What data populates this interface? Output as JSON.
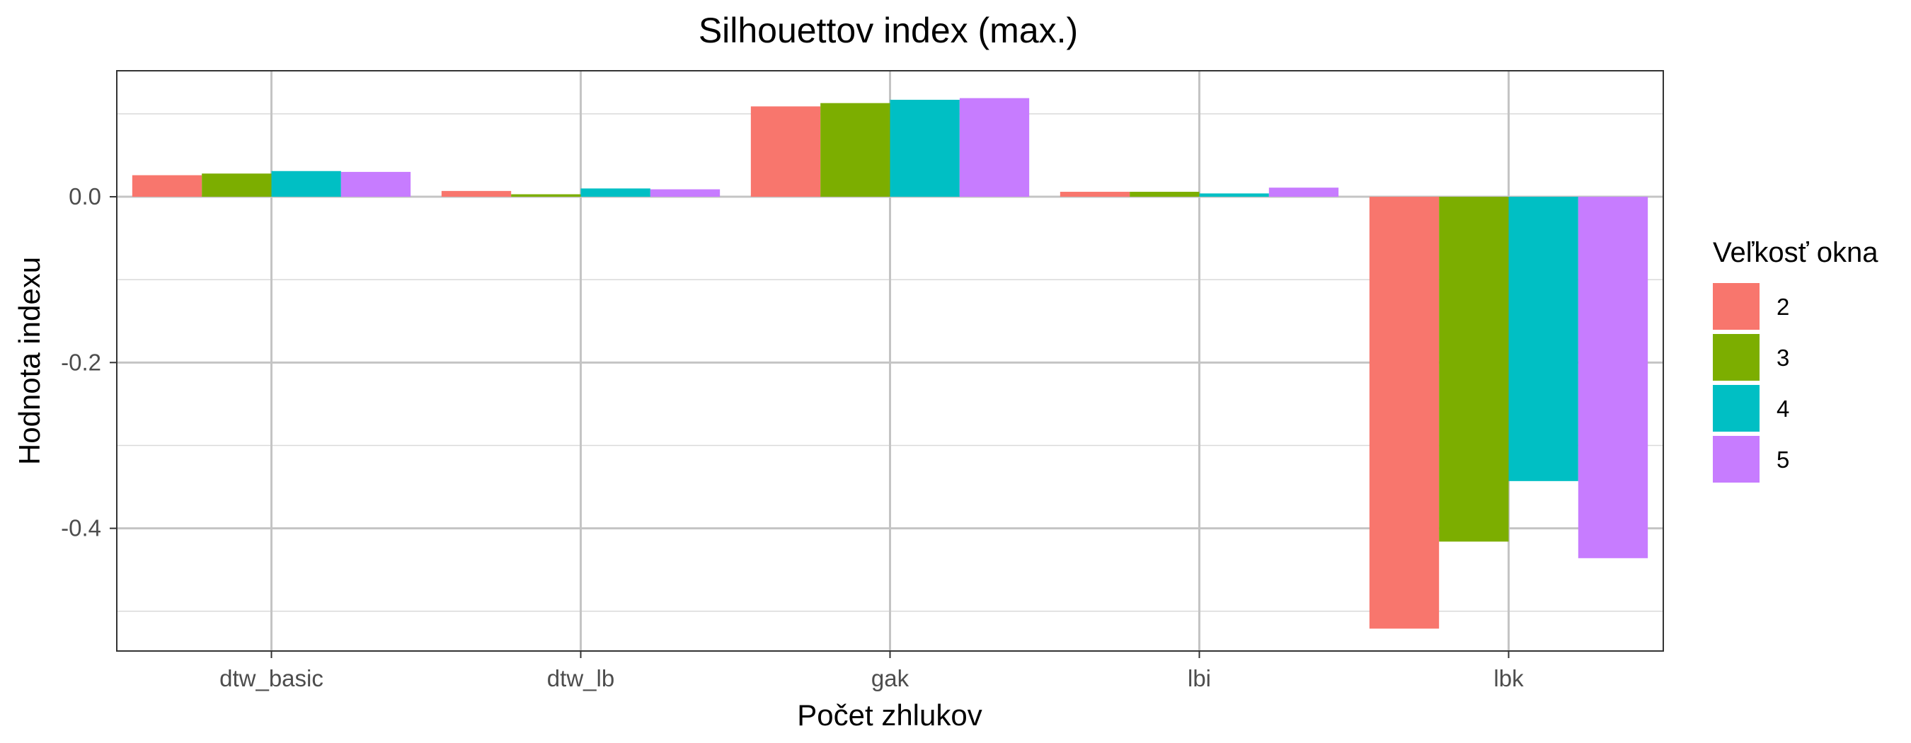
{
  "chart_data": {
    "type": "bar",
    "title": "Silhouettov index (max.)",
    "xlabel": "Počet zhlukov",
    "ylabel": "Hodnota indexu",
    "categories": [
      "dtw_basic",
      "dtw_lb",
      "gak",
      "lbi",
      "lbk"
    ],
    "series": [
      {
        "name": "2",
        "color": "#F8766D",
        "values": [
          0.026,
          0.007,
          0.109,
          0.006,
          -0.521
        ]
      },
      {
        "name": "3",
        "color": "#7CAE00",
        "values": [
          0.028,
          0.003,
          0.113,
          0.006,
          -0.416
        ]
      },
      {
        "name": "4",
        "color": "#00BFC4",
        "values": [
          0.031,
          0.01,
          0.117,
          0.004,
          -0.343
        ]
      },
      {
        "name": "5",
        "color": "#C77CFF",
        "values": [
          0.03,
          0.009,
          0.119,
          0.011,
          -0.436
        ]
      }
    ],
    "ylim": [
      -0.548,
      0.152
    ],
    "yticks": [
      0.0,
      -0.2,
      -0.4
    ],
    "ytick_labels": [
      "0.0",
      "-0.2",
      "-0.4"
    ],
    "grid": true,
    "legend": {
      "title": "Veľkosť okna",
      "position": "right"
    }
  }
}
